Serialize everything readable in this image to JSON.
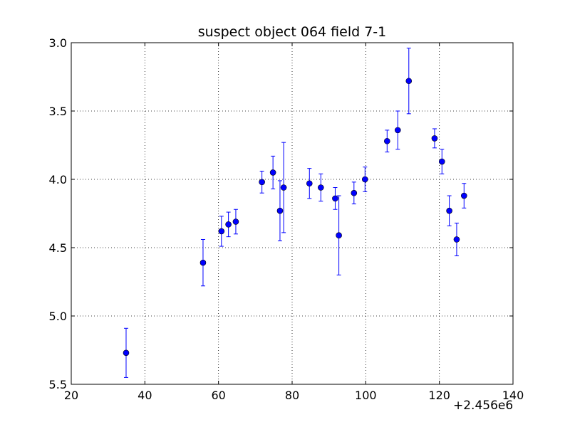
{
  "chart_data": {
    "type": "scatter",
    "title": "suspect object 064 field 7-1",
    "xlabel": "",
    "ylabel": "",
    "x_offset_label": "+2.456e6",
    "xlim": [
      20,
      140
    ],
    "ylim": [
      3.0,
      5.5
    ],
    "y_inverted": true,
    "grid": true,
    "x_ticks": [
      "20",
      "40",
      "60",
      "80",
      "100",
      "120",
      "140"
    ],
    "y_ticks": [
      "3.0",
      "3.5",
      "4.0",
      "4.5",
      "5.0",
      "5.5"
    ],
    "marker_color": "#0000ff",
    "points": [
      {
        "x": 34.9,
        "y": 5.27,
        "err": 0.18
      },
      {
        "x": 55.8,
        "y": 4.61,
        "err": 0.17
      },
      {
        "x": 60.8,
        "y": 4.38,
        "err": 0.11
      },
      {
        "x": 62.7,
        "y": 4.33,
        "err": 0.09
      },
      {
        "x": 64.7,
        "y": 4.31,
        "err": 0.09
      },
      {
        "x": 71.8,
        "y": 4.02,
        "err": 0.08
      },
      {
        "x": 74.8,
        "y": 3.95,
        "err": 0.12
      },
      {
        "x": 76.7,
        "y": 4.23,
        "err": 0.22
      },
      {
        "x": 77.7,
        "y": 4.06,
        "err": 0.33
      },
      {
        "x": 84.7,
        "y": 4.03,
        "err": 0.11
      },
      {
        "x": 87.8,
        "y": 4.06,
        "err": 0.1
      },
      {
        "x": 91.7,
        "y": 4.14,
        "err": 0.08
      },
      {
        "x": 92.7,
        "y": 4.41,
        "err": 0.29
      },
      {
        "x": 96.8,
        "y": 4.1,
        "err": 0.08
      },
      {
        "x": 99.8,
        "y": 4.0,
        "err": 0.09
      },
      {
        "x": 105.8,
        "y": 3.72,
        "err": 0.08
      },
      {
        "x": 108.7,
        "y": 3.64,
        "err": 0.14
      },
      {
        "x": 111.7,
        "y": 3.28,
        "err": 0.24
      },
      {
        "x": 118.7,
        "y": 3.7,
        "err": 0.07
      },
      {
        "x": 120.7,
        "y": 3.87,
        "err": 0.09
      },
      {
        "x": 122.7,
        "y": 4.23,
        "err": 0.11
      },
      {
        "x": 124.7,
        "y": 4.44,
        "err": 0.12
      },
      {
        "x": 126.7,
        "y": 4.12,
        "err": 0.09
      }
    ]
  }
}
